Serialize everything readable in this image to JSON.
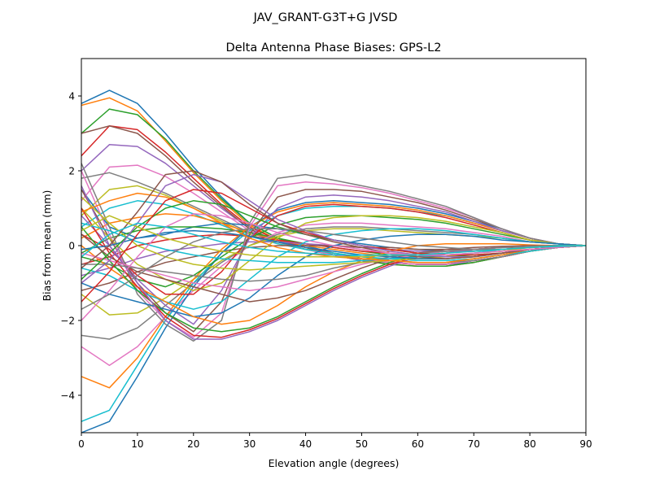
{
  "figure": {
    "suptitle": "JAV_GRANT-G3T+G JVSD"
  },
  "chart_data": {
    "type": "line",
    "title": "Delta Antenna Phase Biases: GPS-L2",
    "xlabel": "Elevation angle (degrees)",
    "ylabel": "Bias from mean (mm)",
    "xlim": [
      0,
      90
    ],
    "ylim": [
      -5,
      5
    ],
    "xticks": [
      0,
      10,
      20,
      30,
      40,
      50,
      60,
      70,
      80,
      90
    ],
    "yticks": [
      -4,
      -2,
      0,
      2,
      4
    ],
    "ytick_labels": [
      "−4",
      "−2",
      "0",
      "2",
      "4"
    ],
    "grid": false,
    "legend": "none",
    "colors": [
      "#1f77b4",
      "#ff7f0e",
      "#2ca02c",
      "#d62728",
      "#9467bd",
      "#8c564b",
      "#e377c2",
      "#7f7f7f",
      "#bcbd22",
      "#17becf"
    ],
    "x": [
      0,
      5,
      10,
      15,
      20,
      25,
      30,
      35,
      40,
      45,
      50,
      55,
      60,
      65,
      70,
      75,
      80,
      85,
      90
    ],
    "series": [
      {
        "values": [
          3.8,
          4.15,
          3.8,
          3.0,
          2.1,
          1.3,
          0.6,
          0.2,
          0.0,
          -0.2,
          -0.35,
          -0.45,
          -0.5,
          -0.5,
          -0.45,
          -0.3,
          -0.15,
          -0.05,
          0.0
        ]
      },
      {
        "values": [
          3.75,
          3.95,
          3.6,
          2.8,
          1.95,
          1.2,
          0.55,
          0.15,
          -0.05,
          -0.25,
          -0.4,
          -0.5,
          -0.55,
          -0.55,
          -0.45,
          -0.3,
          -0.15,
          -0.05,
          0.0
        ]
      },
      {
        "values": [
          3.0,
          3.65,
          3.5,
          2.85,
          2.0,
          1.25,
          0.6,
          0.2,
          -0.05,
          -0.25,
          -0.4,
          -0.5,
          -0.55,
          -0.55,
          -0.45,
          -0.3,
          -0.15,
          -0.05,
          0.0
        ]
      },
      {
        "values": [
          2.4,
          3.2,
          3.1,
          2.5,
          1.8,
          1.1,
          0.5,
          0.15,
          -0.05,
          -0.2,
          -0.35,
          -0.45,
          -0.5,
          -0.5,
          -0.4,
          -0.3,
          -0.15,
          -0.05,
          0.0
        ]
      },
      {
        "values": [
          2.0,
          2.7,
          2.65,
          2.2,
          1.6,
          1.0,
          0.45,
          0.1,
          -0.1,
          -0.25,
          -0.4,
          -0.45,
          -0.5,
          -0.5,
          -0.4,
          -0.3,
          -0.15,
          -0.05,
          0.0
        ]
      },
      {
        "values": [
          3.0,
          3.2,
          3.0,
          2.4,
          1.7,
          1.05,
          0.45,
          0.1,
          -0.1,
          -0.25,
          -0.35,
          -0.45,
          -0.5,
          -0.5,
          -0.4,
          -0.3,
          -0.15,
          -0.05,
          0.0
        ]
      },
      {
        "values": [
          1.2,
          2.1,
          2.15,
          1.85,
          1.4,
          0.9,
          0.4,
          0.1,
          -0.1,
          -0.25,
          -0.35,
          -0.45,
          -0.5,
          -0.5,
          -0.4,
          -0.3,
          -0.15,
          -0.05,
          0.0
        ]
      },
      {
        "values": [
          1.8,
          1.95,
          1.7,
          1.4,
          1.05,
          0.7,
          0.35,
          0.1,
          -0.1,
          -0.2,
          -0.3,
          -0.4,
          -0.45,
          -0.45,
          -0.4,
          -0.3,
          -0.15,
          -0.05,
          0.0
        ]
      },
      {
        "values": [
          0.8,
          1.5,
          1.6,
          1.35,
          1.0,
          0.65,
          0.3,
          0.05,
          -0.1,
          -0.2,
          -0.3,
          -0.4,
          -0.45,
          -0.45,
          -0.35,
          -0.25,
          -0.15,
          -0.05,
          0.0
        ]
      },
      {
        "values": [
          0.5,
          1.0,
          1.2,
          1.1,
          0.85,
          0.55,
          0.25,
          0.05,
          -0.1,
          -0.2,
          -0.3,
          -0.35,
          -0.4,
          -0.4,
          -0.35,
          -0.25,
          -0.15,
          -0.05,
          0.0
        ]
      },
      {
        "values": [
          1.5,
          0.5,
          0.2,
          0.3,
          0.5,
          0.6,
          0.55,
          0.45,
          0.3,
          0.15,
          0.05,
          -0.05,
          -0.1,
          -0.15,
          -0.15,
          -0.1,
          -0.05,
          -0.02,
          0.0
        ]
      },
      {
        "values": [
          0.2,
          0.6,
          0.75,
          0.85,
          0.8,
          0.6,
          0.35,
          0.15,
          0.0,
          -0.1,
          -0.2,
          -0.3,
          -0.35,
          -0.35,
          -0.3,
          -0.2,
          -0.1,
          -0.05,
          0.0
        ]
      },
      {
        "values": [
          -0.2,
          0.2,
          0.4,
          0.5,
          0.5,
          0.45,
          0.35,
          0.2,
          0.05,
          -0.05,
          -0.15,
          -0.25,
          -0.3,
          -0.3,
          -0.25,
          -0.2,
          -0.1,
          -0.05,
          0.0
        ]
      },
      {
        "values": [
          -0.5,
          -0.3,
          0.0,
          0.15,
          0.25,
          0.3,
          0.25,
          0.15,
          0.05,
          -0.05,
          -0.15,
          -0.2,
          -0.25,
          -0.25,
          -0.2,
          -0.15,
          -0.1,
          -0.05,
          0.0
        ]
      },
      {
        "values": [
          -0.8,
          -0.6,
          -0.35,
          -0.15,
          -0.05,
          0.05,
          0.1,
          0.1,
          0.05,
          0.0,
          -0.05,
          -0.1,
          -0.15,
          -0.15,
          -0.15,
          -0.1,
          -0.05,
          -0.02,
          0.0
        ]
      },
      {
        "values": [
          -1.2,
          -1.0,
          -0.7,
          -0.45,
          -0.3,
          -0.15,
          -0.05,
          0.0,
          0.0,
          0.0,
          -0.05,
          -0.05,
          -0.1,
          -0.1,
          -0.1,
          -0.05,
          -0.05,
          -0.02,
          0.0
        ]
      },
      {
        "values": [
          -2.7,
          -3.2,
          -2.7,
          -1.9,
          -1.2,
          -0.55,
          0.0,
          0.35,
          0.55,
          0.6,
          0.6,
          0.55,
          0.5,
          0.45,
          0.35,
          0.25,
          0.1,
          0.05,
          0.0
        ]
      },
      {
        "values": [
          -2.4,
          -2.5,
          -2.2,
          -1.6,
          -1.0,
          -0.45,
          0.0,
          0.3,
          0.45,
          0.5,
          0.5,
          0.45,
          0.4,
          0.35,
          0.3,
          0.2,
          0.1,
          0.05,
          0.0
        ]
      },
      {
        "values": [
          -1.3,
          -1.85,
          -1.8,
          -1.4,
          -0.9,
          -0.4,
          0.0,
          0.25,
          0.4,
          0.45,
          0.45,
          0.4,
          0.35,
          0.3,
          0.25,
          0.2,
          0.1,
          0.05,
          0.0
        ]
      },
      {
        "values": [
          -4.7,
          -4.4,
          -3.2,
          -2.0,
          -1.0,
          -0.2,
          0.4,
          0.8,
          1.0,
          1.05,
          1.05,
          1.0,
          0.9,
          0.8,
          0.6,
          0.4,
          0.2,
          0.05,
          0.0
        ]
      },
      {
        "values": [
          -5.0,
          -4.7,
          -3.5,
          -2.2,
          -1.1,
          -0.2,
          0.5,
          0.95,
          1.15,
          1.2,
          1.15,
          1.1,
          1.0,
          0.85,
          0.65,
          0.45,
          0.2,
          0.05,
          0.0
        ]
      },
      {
        "values": [
          -3.5,
          -3.8,
          -3.0,
          -1.9,
          -0.9,
          -0.1,
          0.5,
          0.9,
          1.1,
          1.15,
          1.1,
          1.05,
          0.95,
          0.8,
          0.6,
          0.4,
          0.2,
          0.05,
          0.0
        ]
      },
      {
        "values": [
          -0.3,
          -0.5,
          -0.9,
          -1.1,
          -0.8,
          -0.3,
          0.2,
          0.55,
          0.75,
          0.8,
          0.8,
          0.75,
          0.7,
          0.6,
          0.45,
          0.3,
          0.15,
          0.05,
          0.0
        ]
      },
      {
        "values": [
          0.3,
          -0.1,
          -0.8,
          -1.3,
          -1.3,
          -0.7,
          0.2,
          0.8,
          1.05,
          1.1,
          1.05,
          1.0,
          0.9,
          0.75,
          0.55,
          0.35,
          0.15,
          0.05,
          0.0
        ]
      },
      {
        "values": [
          0.8,
          0.0,
          -0.9,
          -1.6,
          -2.1,
          -1.2,
          0.2,
          1.0,
          1.3,
          1.35,
          1.3,
          1.2,
          1.05,
          0.9,
          0.65,
          0.4,
          0.2,
          0.05,
          0.0
        ]
      },
      {
        "values": [
          1.5,
          0.2,
          -1.0,
          -1.8,
          -2.3,
          -1.5,
          0.3,
          1.3,
          1.5,
          1.5,
          1.45,
          1.3,
          1.15,
          0.95,
          0.7,
          0.45,
          0.2,
          0.05,
          0.0
        ]
      },
      {
        "values": [
          2.0,
          0.3,
          -1.2,
          -2.0,
          -2.45,
          -1.8,
          0.5,
          1.6,
          1.7,
          1.65,
          1.55,
          1.4,
          1.2,
          1.0,
          0.75,
          0.45,
          0.2,
          0.05,
          0.0
        ]
      },
      {
        "values": [
          2.2,
          0.5,
          -1.3,
          -2.1,
          -2.55,
          -2.0,
          0.6,
          1.8,
          1.9,
          1.75,
          1.6,
          1.45,
          1.25,
          1.05,
          0.75,
          0.45,
          0.2,
          0.05,
          0.0
        ]
      },
      {
        "values": [
          1.0,
          0.2,
          -0.5,
          -0.9,
          -1.2,
          -1.0,
          -0.4,
          0.2,
          0.6,
          0.75,
          0.8,
          0.8,
          0.75,
          0.65,
          0.5,
          0.35,
          0.15,
          0.05,
          0.0
        ]
      },
      {
        "values": [
          -0.6,
          -0.8,
          -1.2,
          -1.5,
          -1.7,
          -1.5,
          -0.9,
          -0.3,
          0.1,
          0.3,
          0.4,
          0.45,
          0.45,
          0.4,
          0.3,
          0.2,
          0.1,
          0.05,
          0.0
        ]
      },
      {
        "values": [
          -1.0,
          -1.3,
          -1.5,
          -1.7,
          -1.9,
          -1.8,
          -1.4,
          -0.8,
          -0.3,
          0.0,
          0.15,
          0.25,
          0.3,
          0.3,
          0.25,
          0.15,
          0.1,
          0.05,
          0.0
        ]
      },
      {
        "values": [
          0.0,
          -0.6,
          -1.1,
          -1.5,
          -1.9,
          -2.1,
          -2.0,
          -1.6,
          -1.1,
          -0.7,
          -0.4,
          -0.15,
          0.0,
          0.05,
          0.05,
          0.05,
          0.02,
          0.0,
          0.0
        ]
      },
      {
        "values": [
          0.5,
          -0.4,
          -1.2,
          -1.8,
          -2.2,
          -2.3,
          -2.2,
          -1.9,
          -1.5,
          -1.1,
          -0.75,
          -0.45,
          -0.25,
          -0.15,
          -0.1,
          -0.05,
          -0.02,
          0.0,
          0.0
        ]
      },
      {
        "values": [
          1.0,
          -0.2,
          -1.1,
          -1.9,
          -2.4,
          -2.45,
          -2.25,
          -1.95,
          -1.55,
          -1.15,
          -0.8,
          -0.5,
          -0.3,
          -0.2,
          -0.1,
          -0.05,
          -0.02,
          0.0,
          0.0
        ]
      },
      {
        "values": [
          1.6,
          0.0,
          -1.0,
          -2.0,
          -2.5,
          -2.5,
          -2.3,
          -2.0,
          -1.6,
          -1.2,
          -0.85,
          -0.55,
          -0.3,
          -0.2,
          -0.1,
          -0.05,
          -0.02,
          0.0,
          0.0
        ]
      },
      {
        "values": [
          0.3,
          -0.3,
          -0.7,
          -0.9,
          -1.1,
          -1.3,
          -1.5,
          -1.4,
          -1.2,
          -0.9,
          -0.6,
          -0.35,
          -0.2,
          -0.1,
          -0.05,
          -0.02,
          0.0,
          0.0,
          0.0
        ]
      },
      {
        "values": [
          -0.2,
          -0.4,
          -0.6,
          -0.8,
          -1.0,
          -1.1,
          -1.2,
          -1.1,
          -0.9,
          -0.7,
          -0.5,
          -0.35,
          -0.25,
          -0.15,
          -0.1,
          -0.05,
          -0.02,
          0.0,
          0.0
        ]
      },
      {
        "values": [
          -0.5,
          -0.5,
          -0.6,
          -0.7,
          -0.8,
          -0.9,
          -0.95,
          -0.9,
          -0.8,
          -0.6,
          -0.45,
          -0.3,
          -0.2,
          -0.15,
          -0.1,
          -0.05,
          -0.02,
          0.0,
          0.0
        ]
      },
      {
        "values": [
          1.3,
          0.6,
          0.0,
          -0.3,
          -0.5,
          -0.6,
          -0.65,
          -0.6,
          -0.55,
          -0.5,
          -0.45,
          -0.4,
          -0.35,
          -0.3,
          -0.2,
          -0.15,
          -0.05,
          0.0,
          0.0
        ]
      },
      {
        "values": [
          0.6,
          0.4,
          0.1,
          -0.1,
          -0.25,
          -0.35,
          -0.4,
          -0.45,
          -0.45,
          -0.45,
          -0.4,
          -0.35,
          -0.3,
          -0.25,
          -0.2,
          -0.1,
          -0.05,
          0.0,
          0.0
        ]
      },
      {
        "values": [
          -0.1,
          0.0,
          0.2,
          0.35,
          0.4,
          0.35,
          0.25,
          0.1,
          -0.05,
          -0.15,
          -0.25,
          -0.3,
          -0.35,
          -0.35,
          -0.3,
          -0.2,
          -0.1,
          -0.05,
          0.0
        ]
      },
      {
        "values": [
          0.9,
          1.2,
          1.4,
          1.3,
          1.0,
          0.6,
          0.2,
          -0.05,
          -0.2,
          -0.3,
          -0.35,
          -0.4,
          -0.45,
          -0.45,
          -0.35,
          -0.25,
          -0.1,
          -0.05,
          0.0
        ]
      },
      {
        "values": [
          -0.9,
          -0.2,
          0.5,
          1.0,
          1.2,
          1.1,
          0.8,
          0.5,
          0.3,
          0.15,
          0.0,
          -0.1,
          -0.2,
          -0.25,
          -0.25,
          -0.2,
          -0.1,
          -0.05,
          0.0
        ]
      },
      {
        "values": [
          -1.5,
          -0.7,
          0.3,
          1.2,
          1.5,
          1.4,
          1.0,
          0.6,
          0.35,
          0.15,
          0.0,
          -0.1,
          -0.2,
          -0.25,
          -0.25,
          -0.2,
          -0.1,
          -0.05,
          0.0
        ]
      },
      {
        "values": [
          -1.0,
          -0.4,
          0.6,
          1.6,
          1.9,
          1.7,
          1.2,
          0.7,
          0.4,
          0.15,
          0.0,
          -0.15,
          -0.25,
          -0.3,
          -0.3,
          -0.2,
          -0.1,
          -0.05,
          0.0
        ]
      },
      {
        "values": [
          -0.6,
          0.0,
          0.9,
          1.9,
          2.0,
          1.7,
          1.1,
          0.6,
          0.3,
          0.1,
          -0.05,
          -0.2,
          -0.3,
          -0.35,
          -0.3,
          -0.2,
          -0.1,
          -0.05,
          0.0
        ]
      },
      {
        "values": [
          -2.0,
          -1.2,
          -0.3,
          0.5,
          0.85,
          0.8,
          0.6,
          0.35,
          0.15,
          0.0,
          -0.1,
          -0.2,
          -0.25,
          -0.25,
          -0.2,
          -0.15,
          -0.1,
          -0.05,
          0.0
        ]
      },
      {
        "values": [
          -1.7,
          -1.3,
          -0.8,
          -0.3,
          0.1,
          0.35,
          0.45,
          0.45,
          0.4,
          0.3,
          0.2,
          0.1,
          0.0,
          -0.05,
          -0.1,
          -0.1,
          -0.05,
          -0.02,
          0.0
        ]
      },
      {
        "values": [
          0.4,
          0.8,
          0.5,
          0.2,
          0.0,
          -0.15,
          -0.25,
          -0.3,
          -0.3,
          -0.3,
          -0.3,
          -0.25,
          -0.25,
          -0.2,
          -0.15,
          -0.1,
          -0.05,
          -0.02,
          0.0
        ]
      },
      {
        "values": [
          -0.3,
          0.3,
          0.6,
          0.5,
          0.3,
          0.1,
          -0.05,
          -0.15,
          -0.2,
          -0.25,
          -0.25,
          -0.25,
          -0.25,
          -0.2,
          -0.15,
          -0.1,
          -0.05,
          -0.02,
          0.0
        ]
      }
    ]
  }
}
